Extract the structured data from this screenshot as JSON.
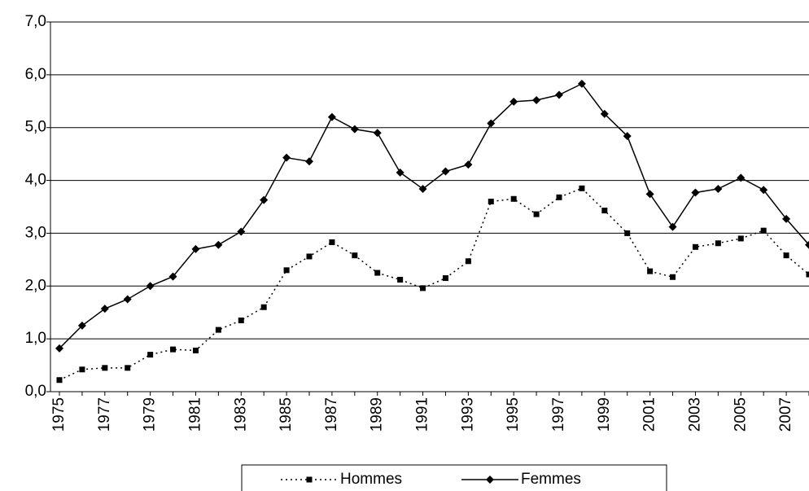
{
  "chart_data": {
    "type": "line",
    "categories": [
      "1975",
      null,
      "1977",
      null,
      "1979",
      null,
      "1981",
      null,
      "1983",
      null,
      "1985",
      null,
      "1987",
      null,
      "1989",
      null,
      "1991",
      null,
      "1993",
      null,
      "1995",
      null,
      "1997",
      null,
      "1999",
      null,
      "2001",
      null,
      "2003",
      null,
      "2005",
      null,
      "2007",
      null
    ],
    "series": [
      {
        "name": "Hommes",
        "color": "#000000",
        "line_style": "dotted",
        "marker": "square",
        "values": [
          0.22,
          0.42,
          0.45,
          0.45,
          0.7,
          0.8,
          0.78,
          1.17,
          1.35,
          1.6,
          2.3,
          2.56,
          2.83,
          2.58,
          2.25,
          2.12,
          1.96,
          2.15,
          2.47,
          3.6,
          3.65,
          3.36,
          3.68,
          3.85,
          3.43,
          3.0,
          2.28,
          2.17,
          2.74,
          2.81,
          2.9,
          3.05,
          2.58,
          2.22
        ]
      },
      {
        "name": "Femmes",
        "color": "#000000",
        "line_style": "solid",
        "marker": "diamond",
        "values": [
          0.82,
          1.25,
          1.57,
          1.75,
          2.0,
          2.18,
          2.7,
          2.78,
          3.03,
          3.63,
          4.43,
          4.36,
          5.2,
          4.97,
          4.9,
          4.15,
          3.84,
          4.17,
          4.3,
          5.08,
          5.49,
          5.52,
          5.62,
          5.83,
          5.26,
          4.84,
          3.74,
          3.12,
          3.77,
          3.84,
          4.05,
          3.82,
          3.27,
          2.78
        ]
      }
    ],
    "ylim": [
      0,
      7
    ],
    "yticks": [
      {
        "value": 0,
        "label": "0,0"
      },
      {
        "value": 1,
        "label": "1,0"
      },
      {
        "value": 2,
        "label": "2,0"
      },
      {
        "value": 3,
        "label": "3,0"
      },
      {
        "value": 4,
        "label": "4,0"
      },
      {
        "value": 5,
        "label": "5,0"
      },
      {
        "value": 6,
        "label": "6,0"
      },
      {
        "value": 7,
        "label": "7,0"
      }
    ],
    "grid": true,
    "legend": "bottom"
  }
}
